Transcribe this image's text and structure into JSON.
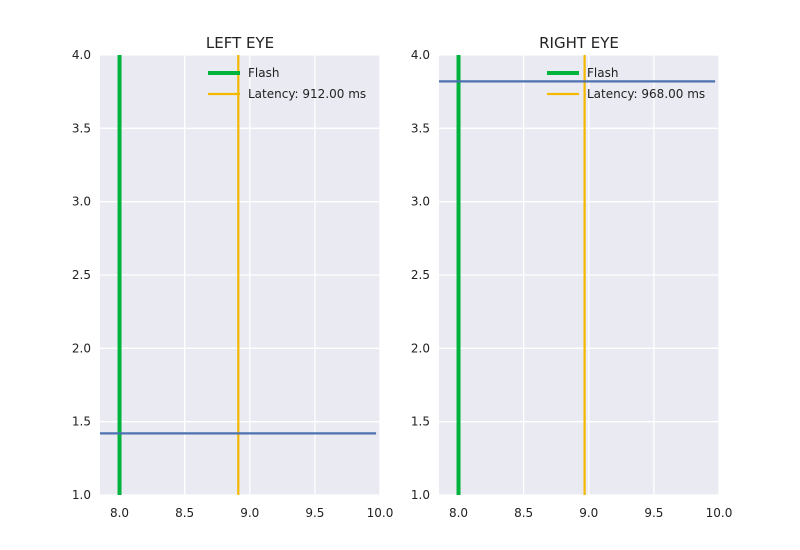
{
  "chart_data": [
    {
      "type": "line",
      "title": "LEFT EYE",
      "xlabel": "",
      "ylabel": "",
      "xlim": [
        7.85,
        10.0
      ],
      "ylim": [
        1.0,
        4.0
      ],
      "xticks": [
        "8.0",
        "8.5",
        "9.0",
        "9.5",
        "10.0"
      ],
      "xtick_values": [
        8.0,
        8.5,
        9.0,
        9.5,
        10.0
      ],
      "yticks": [
        "1.0",
        "1.5",
        "2.0",
        "2.5",
        "3.0",
        "3.5",
        "4.0"
      ],
      "ytick_values": [
        1.0,
        1.5,
        2.0,
        2.5,
        3.0,
        3.5,
        4.0
      ],
      "grid": true,
      "legend_position": "top-right",
      "series": [
        {
          "name": "Flash",
          "kind": "vline",
          "x": 8.0,
          "color": "#00b33c"
        },
        {
          "name": "Latency: 912.00 ms",
          "kind": "vline",
          "x": 8.912,
          "color": "#f5b800"
        },
        {
          "kind": "hline",
          "y": 1.42,
          "x_range": [
            7.85,
            9.97
          ],
          "color": "#4c72b0"
        }
      ]
    },
    {
      "type": "line",
      "title": "RIGHT EYE",
      "xlabel": "",
      "ylabel": "",
      "xlim": [
        7.85,
        10.0
      ],
      "ylim": [
        1.0,
        4.0
      ],
      "xticks": [
        "8.0",
        "8.5",
        "9.0",
        "9.5",
        "10.0"
      ],
      "xtick_values": [
        8.0,
        8.5,
        9.0,
        9.5,
        10.0
      ],
      "yticks": [
        "1.0",
        "1.5",
        "2.0",
        "2.5",
        "3.0",
        "3.5",
        "4.0"
      ],
      "ytick_values": [
        1.0,
        1.5,
        2.0,
        2.5,
        3.0,
        3.5,
        4.0
      ],
      "grid": true,
      "legend_position": "top-right",
      "series": [
        {
          "name": "Flash",
          "kind": "vline",
          "x": 8.0,
          "color": "#00b33c"
        },
        {
          "name": "Latency: 968.00 ms",
          "kind": "vline",
          "x": 8.968,
          "color": "#f5b800"
        },
        {
          "kind": "hline",
          "y": 3.82,
          "x_range": [
            7.85,
            9.97
          ],
          "color": "#4c72b0"
        }
      ]
    }
  ],
  "colors": {
    "panel_background": "#eaeaf2",
    "gridline": "#ffffff",
    "flash": "#00b33c",
    "latency": "#f5b800",
    "signal": "#4c72b0"
  }
}
